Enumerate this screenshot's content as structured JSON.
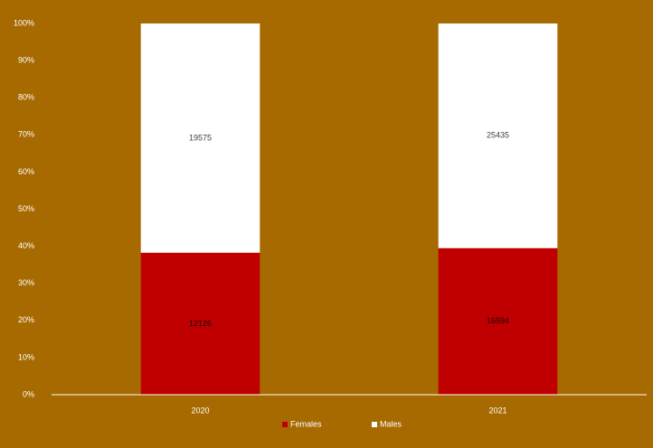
{
  "chart_data": {
    "type": "bar",
    "stacking": "percent",
    "categories": [
      "2020",
      "2021"
    ],
    "series": [
      {
        "name": "Females",
        "color": "#c00000",
        "values": [
          12126,
          16594
        ]
      },
      {
        "name": "Males",
        "color": "#ffffff",
        "values": [
          19575,
          25435
        ]
      }
    ],
    "ylim": [
      0,
      100
    ],
    "yticks": [
      {
        "value": 0,
        "label": "0%"
      },
      {
        "value": 10,
        "label": "10%"
      },
      {
        "value": 20,
        "label": "20%"
      },
      {
        "value": 30,
        "label": "30%"
      },
      {
        "value": 40,
        "label": "40%"
      },
      {
        "value": 50,
        "label": "50%"
      },
      {
        "value": 60,
        "label": "60%"
      },
      {
        "value": 70,
        "label": "70%"
      },
      {
        "value": 80,
        "label": "80%"
      },
      {
        "value": 90,
        "label": "90%"
      },
      {
        "value": 100,
        "label": "100%"
      }
    ],
    "grid": false,
    "legend": "bottom",
    "background": "#a66a00"
  }
}
